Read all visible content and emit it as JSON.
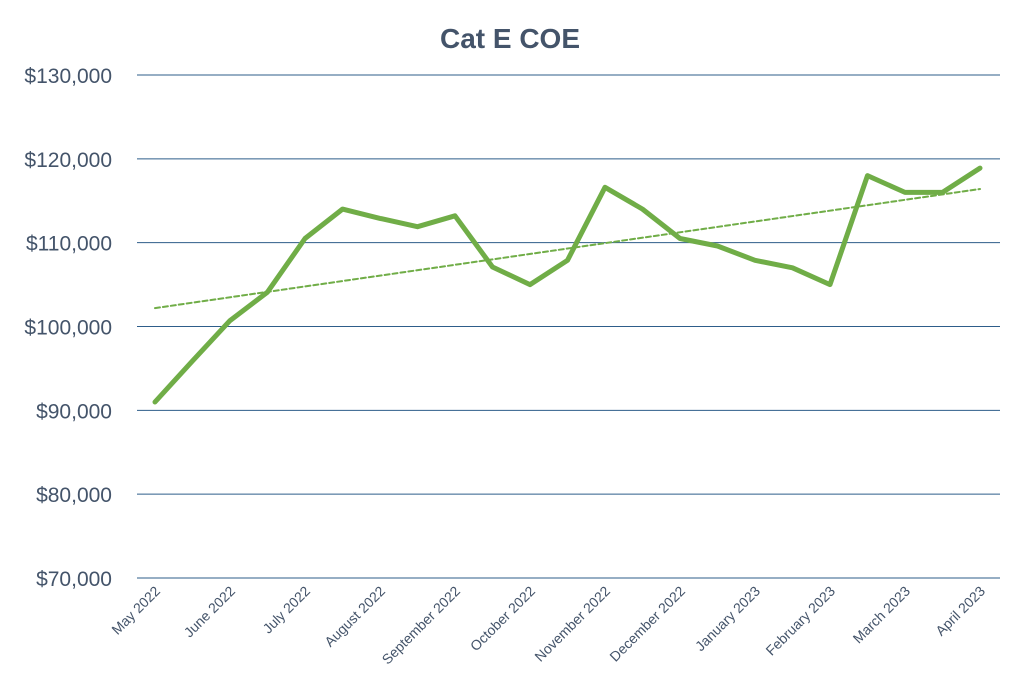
{
  "chart_data": {
    "type": "line",
    "title": "Cat E COE",
    "xlabel": "",
    "ylabel": "",
    "ylim": [
      70000,
      130000
    ],
    "y_ticks": [
      70000,
      80000,
      90000,
      100000,
      110000,
      120000,
      130000
    ],
    "y_tick_labels": [
      "$70,000",
      "$80,000",
      "$90,000",
      "$100,000",
      "$110,000",
      "$120,000",
      "$130,000"
    ],
    "x_ticks": [
      "May 2022",
      "June 2022",
      "July 2022",
      "August 2022",
      "September 2022",
      "October 2022",
      "November 2022",
      "December 2022",
      "January 2023",
      "February 2023",
      "March 2023",
      "April 2023"
    ],
    "grid": true,
    "legend": "none",
    "series": [
      {
        "style": "solid",
        "color": "#70ad47",
        "values": [
          91000,
          95900,
          100700,
          104100,
          110500,
          114000,
          112900,
          111900,
          113200,
          107100,
          105000,
          107900,
          116600,
          114000,
          110500,
          109600,
          107900,
          107000,
          105000,
          118000,
          116000,
          116000,
          118900
        ]
      },
      {
        "style": "dashed",
        "color": "#70ad47",
        "trendline": "linear",
        "values": [
          102200,
          116400
        ]
      }
    ]
  }
}
